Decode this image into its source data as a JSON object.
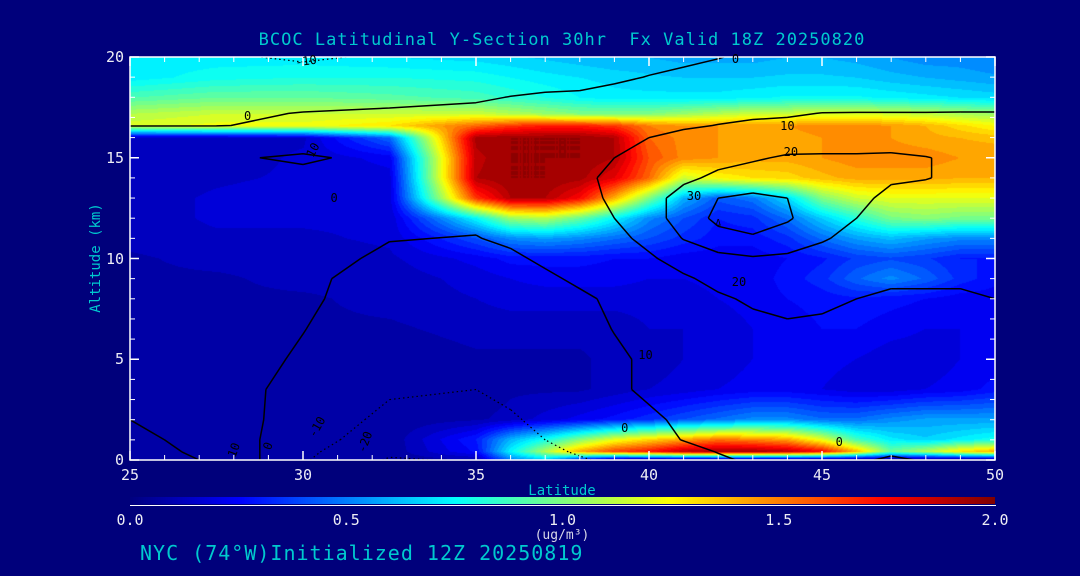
{
  "title": "BCOC Latitudinal Y-Section 30hr  Fx Valid 18Z 20250820",
  "footer": "NYC (74°W)Initialized 12Z 20250819",
  "colors": {
    "background": "#00007b",
    "label_cyan": "#00c9ce",
    "tick_white": "#ededf5",
    "axis_white": "#ffffff",
    "contour_black": "#000000"
  },
  "axes": {
    "x": {
      "label": "Latitude",
      "min": 25,
      "max": 50,
      "major_ticks": [
        25,
        30,
        35,
        40,
        45,
        50
      ],
      "minor_step": 1
    },
    "y": {
      "label": "Altitude (km)",
      "min": 0,
      "max": 20,
      "major_ticks": [
        0,
        5,
        10,
        15,
        20
      ],
      "minor_step": 1
    }
  },
  "colorbar": {
    "min": 0.0,
    "max": 2.0,
    "tick_labels": [
      "0.0",
      "0.5",
      "1.0",
      "1.5",
      "2.0"
    ],
    "units": "(ug/m³)",
    "palette": "jet"
  },
  "chart_data": {
    "type": "heatmap",
    "title": "BCOC Latitudinal Y-Section 30hr  Fx Valid 18Z 20250820",
    "xlabel": "Latitude",
    "ylabel": "Altitude (km)",
    "fill_field": "BCOC concentration (ug/m3), values estimated from jet colormap, range 0-2",
    "fill_levels_step": 0.05,
    "lats": [
      25,
      27.5,
      30,
      32.5,
      35,
      36,
      37,
      38,
      39,
      40,
      41,
      42,
      43,
      44,
      45,
      46,
      47,
      48,
      49,
      50
    ],
    "alts": [
      0,
      0.4,
      1,
      2,
      3.5,
      5,
      6.5,
      8,
      9,
      10,
      11,
      12,
      13,
      14,
      15,
      16,
      16.6,
      17.2,
      18,
      19,
      20
    ],
    "conc": [
      [
        0.06,
        0.06,
        0.06,
        0.06,
        0.1,
        0.5,
        0.66,
        0.3,
        0.06,
        0.03,
        0.03,
        0.03,
        0.03,
        0.03,
        0.03,
        0.03,
        0.03,
        0.03,
        0.03,
        0.03
      ],
      [
        0.06,
        0.06,
        0.06,
        0.06,
        0.26,
        0.74,
        1.1,
        1.42,
        1.62,
        1.72,
        1.88,
        1.93,
        1.93,
        1.88,
        1.75,
        1.4,
        0.95,
        1.1,
        1.3,
        1.42
      ],
      [
        0.06,
        0.06,
        0.06,
        0.06,
        0.3,
        0.6,
        0.78,
        1.0,
        1.2,
        1.32,
        1.42,
        1.52,
        1.48,
        1.42,
        1.2,
        0.88,
        0.72,
        0.66,
        0.72,
        0.78
      ],
      [
        0.06,
        0.06,
        0.06,
        0.06,
        0.09,
        0.12,
        0.17,
        0.22,
        0.27,
        0.33,
        0.4,
        0.46,
        0.52,
        0.52,
        0.46,
        0.46,
        0.52,
        0.56,
        0.56,
        0.56
      ],
      [
        0.06,
        0.06,
        0.06,
        0.06,
        0.06,
        0.09,
        0.09,
        0.09,
        0.12,
        0.15,
        0.17,
        0.2,
        0.22,
        0.22,
        0.2,
        0.17,
        0.17,
        0.2,
        0.22,
        0.27
      ],
      [
        0.06,
        0.06,
        0.09,
        0.06,
        0.09,
        0.09,
        0.09,
        0.09,
        0.12,
        0.12,
        0.15,
        0.17,
        0.2,
        0.22,
        0.22,
        0.2,
        0.17,
        0.17,
        0.2,
        0.22
      ],
      [
        0.06,
        0.09,
        0.09,
        0.09,
        0.12,
        0.12,
        0.12,
        0.12,
        0.12,
        0.15,
        0.15,
        0.17,
        0.2,
        0.22,
        0.25,
        0.25,
        0.22,
        0.2,
        0.2,
        0.22
      ],
      [
        0.06,
        0.09,
        0.09,
        0.12,
        0.15,
        0.17,
        0.17,
        0.17,
        0.17,
        0.17,
        0.17,
        0.2,
        0.22,
        0.25,
        0.27,
        0.29,
        0.27,
        0.25,
        0.22,
        0.22
      ],
      [
        0.09,
        0.09,
        0.12,
        0.12,
        0.17,
        0.2,
        0.22,
        0.22,
        0.22,
        0.2,
        0.2,
        0.22,
        0.22,
        0.27,
        0.33,
        0.44,
        0.52,
        0.44,
        0.33,
        0.27
      ],
      [
        0.09,
        0.12,
        0.12,
        0.14,
        0.22,
        0.27,
        0.27,
        0.27,
        0.25,
        0.25,
        0.22,
        0.22,
        0.22,
        0.25,
        0.29,
        0.36,
        0.39,
        0.36,
        0.3,
        0.3
      ],
      [
        0.12,
        0.14,
        0.14,
        0.16,
        0.4,
        0.52,
        0.56,
        0.52,
        0.46,
        0.4,
        0.33,
        0.27,
        0.27,
        0.33,
        0.46,
        0.56,
        0.62,
        0.56,
        0.52,
        0.52
      ],
      [
        0.12,
        0.16,
        0.16,
        0.16,
        0.75,
        1.05,
        1.1,
        0.95,
        0.75,
        0.52,
        0.4,
        0.3,
        0.33,
        0.46,
        0.65,
        0.82,
        0.98,
        1.02,
        0.98,
        0.98
      ],
      [
        0.12,
        0.16,
        0.18,
        0.18,
        1.65,
        1.9,
        1.9,
        1.75,
        1.4,
        1.0,
        0.6,
        0.42,
        0.48,
        0.68,
        1.0,
        1.15,
        1.2,
        1.2,
        1.2,
        1.2
      ],
      [
        0.12,
        0.14,
        0.16,
        0.18,
        1.9,
        1.95,
        1.95,
        1.92,
        1.8,
        1.55,
        1.15,
        1.25,
        1.3,
        1.32,
        1.38,
        1.42,
        1.42,
        1.42,
        1.4,
        1.4
      ],
      [
        0.12,
        0.12,
        0.16,
        0.22,
        1.88,
        1.95,
        1.95,
        1.95,
        1.9,
        1.6,
        1.48,
        1.45,
        1.42,
        1.42,
        1.45,
        1.48,
        1.48,
        1.48,
        1.45,
        1.45
      ],
      [
        0.12,
        0.12,
        0.14,
        0.45,
        1.92,
        1.95,
        1.95,
        1.95,
        1.9,
        1.55,
        1.48,
        1.45,
        1.42,
        1.42,
        1.45,
        1.45,
        1.45,
        1.42,
        1.4,
        1.38
      ],
      [
        1.18,
        1.22,
        1.22,
        1.3,
        1.55,
        1.65,
        1.7,
        1.7,
        1.65,
        1.5,
        1.45,
        1.45,
        1.45,
        1.45,
        1.48,
        1.48,
        1.45,
        1.4,
        1.32,
        1.25
      ],
      [
        1.1,
        1.15,
        1.15,
        1.15,
        1.15,
        1.1,
        1.05,
        1.0,
        1.0,
        1.0,
        1.05,
        1.1,
        1.15,
        1.15,
        1.18,
        1.18,
        1.15,
        1.12,
        1.08,
        1.05
      ],
      [
        0.9,
        0.95,
        0.95,
        0.92,
        0.88,
        0.84,
        0.8,
        0.75,
        0.72,
        0.72,
        0.72,
        0.72,
        0.74,
        0.76,
        0.76,
        0.76,
        0.74,
        0.72,
        0.7,
        0.68
      ],
      [
        0.72,
        0.78,
        0.8,
        0.8,
        0.78,
        0.75,
        0.72,
        0.7,
        0.68,
        0.66,
        0.65,
        0.65,
        0.65,
        0.66,
        0.66,
        0.65,
        0.62,
        0.6,
        0.58,
        0.56
      ],
      [
        0.72,
        0.72,
        0.72,
        0.7,
        0.68,
        0.66,
        0.64,
        0.62,
        0.6,
        0.6,
        0.58,
        0.58,
        0.58,
        0.6,
        0.6,
        0.58,
        0.55,
        0.52,
        0.52,
        0.5
      ]
    ],
    "overlay_contours": {
      "description": "black line-contour field, labels -20..30, negative levels dotted",
      "levels": [
        -20,
        -10,
        0,
        10,
        20,
        30
      ],
      "values": [
        [
          14,
          9,
          -9,
          -21,
          -19,
          -16,
          -13,
          -11,
          -8,
          -6,
          -3,
          -1,
          1,
          1,
          2,
          1,
          -1,
          0.5,
          1,
          2
        ],
        [
          13,
          8,
          -8,
          -18,
          -17,
          -14,
          -12,
          -9,
          -7,
          -4,
          -2,
          0.2,
          1,
          2,
          2,
          1,
          1,
          1,
          2,
          3
        ],
        [
          12,
          7,
          -7,
          -14,
          -15,
          -13,
          -10,
          -8,
          -5,
          -2,
          0.2,
          2,
          3,
          3,
          3,
          2,
          1,
          2,
          3,
          4
        ],
        [
          10,
          6,
          -5,
          -12,
          -13,
          -11,
          -8,
          -5,
          -3,
          -1,
          1,
          3,
          4,
          4,
          4,
          3,
          3,
          3,
          4,
          5
        ],
        [
          8,
          4,
          -3,
          -9,
          -10,
          -8,
          -6,
          -4,
          -1,
          1,
          2,
          3,
          5,
          5,
          5,
          5,
          4,
          4,
          5,
          6
        ],
        [
          7,
          4,
          -1,
          -7,
          -8,
          -7,
          -5,
          -3,
          -1,
          1,
          3,
          4,
          6,
          7,
          7,
          6,
          5,
          6,
          6,
          7
        ],
        [
          6,
          3,
          0.2,
          -5,
          -6,
          -5,
          -4,
          -2,
          0.2,
          2,
          4,
          6,
          8,
          9,
          9,
          8,
          7,
          7,
          8,
          8
        ],
        [
          5,
          3,
          1,
          -3,
          -4,
          -3,
          -2,
          -1,
          1,
          3,
          6,
          9,
          11,
          12,
          11,
          10,
          9,
          9,
          9,
          10
        ],
        [
          5,
          3,
          1,
          -2,
          -3,
          -2,
          -1,
          1,
          3,
          6,
          9,
          12,
          14,
          14,
          13,
          12,
          11,
          11,
          11,
          11
        ],
        [
          4,
          3,
          2,
          -1,
          -1,
          -1,
          1,
          3,
          6,
          9,
          13,
          17,
          19,
          18,
          16,
          14,
          13,
          12,
          12,
          12
        ],
        [
          4,
          3,
          2,
          0.2,
          -0.2,
          1,
          2,
          5,
          8,
          12,
          20.5,
          27,
          29,
          26,
          21,
          17,
          15,
          14,
          14,
          14
        ],
        [
          4,
          3,
          2,
          0.2,
          1,
          2,
          4,
          7,
          10,
          15,
          25,
          32,
          34,
          31,
          25,
          20,
          17,
          16,
          15,
          15
        ],
        [
          3,
          4,
          5,
          3,
          2,
          4,
          6,
          8,
          11,
          16,
          24,
          30,
          32,
          30,
          25,
          21,
          19,
          18,
          17,
          17
        ],
        [
          5,
          7,
          8,
          6,
          3,
          5,
          7,
          9,
          11,
          14,
          18,
          22,
          24,
          23,
          22,
          21,
          20.5,
          20.2,
          19,
          19
        ],
        [
          7,
          9,
          11,
          8,
          3,
          5,
          7,
          8,
          10,
          12,
          15,
          17,
          19,
          21,
          21,
          21,
          21,
          20.2,
          19,
          19
        ],
        [
          5,
          6,
          6,
          6,
          3,
          5,
          6,
          7,
          8,
          10,
          12,
          13,
          14,
          15,
          16,
          16,
          17,
          17,
          17,
          17
        ],
        [
          -0.2,
          -0.2,
          1,
          2,
          3,
          4,
          5,
          6,
          7,
          8,
          9,
          10.2,
          11,
          12,
          12,
          13,
          13,
          13,
          13,
          13
        ],
        [
          -1,
          -1,
          0.2,
          1,
          2,
          3,
          4,
          4,
          5,
          6,
          7,
          8,
          9,
          9,
          10.2,
          10.2,
          10.2,
          10.2,
          10.2,
          10.2
        ],
        [
          -3,
          -3,
          -2,
          -2,
          -1,
          0.2,
          1,
          1,
          2,
          3,
          4,
          5,
          5,
          6,
          6,
          7,
          7,
          7,
          8,
          8
        ],
        [
          -6,
          -7,
          -7,
          -6,
          -5,
          -4,
          -3,
          -2,
          -1,
          0.2,
          1,
          2,
          3,
          3,
          4,
          4,
          5,
          5,
          6,
          6
        ],
        [
          -8,
          -9,
          -11,
          -9,
          -7,
          -6,
          -5,
          -4,
          -3,
          -2,
          -1,
          -0.2,
          1,
          1,
          2,
          2,
          3,
          3,
          4,
          4
        ]
      ],
      "labels": [
        {
          "text": "-10",
          "lat": 30.1,
          "alt": 19.8,
          "rot": -8,
          "small": false
        },
        {
          "text": "0",
          "lat": 28.4,
          "alt": 17.05,
          "rot": 0,
          "small": false
        },
        {
          "text": "0",
          "lat": 42.5,
          "alt": 19.9,
          "rot": 0,
          "small": false
        },
        {
          "text": "10",
          "lat": 30.3,
          "alt": 15.4,
          "rot": -62,
          "small": false
        },
        {
          "text": "0",
          "lat": 30.9,
          "alt": 13.0,
          "rot": 0,
          "small": false
        },
        {
          "text": "10",
          "lat": 44.0,
          "alt": 16.6,
          "rot": 0,
          "small": false
        },
        {
          "text": "20",
          "lat": 44.1,
          "alt": 15.3,
          "rot": 0,
          "small": false
        },
        {
          "text": "30",
          "lat": 41.3,
          "alt": 13.1,
          "rot": 0,
          "small": false
        },
        {
          "text": "Δ",
          "lat": 42.0,
          "alt": 11.7,
          "rot": 0,
          "small": true
        },
        {
          "text": "20",
          "lat": 42.6,
          "alt": 8.85,
          "rot": 0,
          "small": false
        },
        {
          "text": "10",
          "lat": 39.9,
          "alt": 5.2,
          "rot": 0,
          "small": false
        },
        {
          "text": "0",
          "lat": 39.3,
          "alt": 1.6,
          "rot": 0,
          "small": false
        },
        {
          "text": "0",
          "lat": 45.5,
          "alt": 0.9,
          "rot": 0,
          "small": false
        },
        {
          "text": "10",
          "lat": 28.0,
          "alt": 0.5,
          "rot": -70,
          "small": false
        },
        {
          "text": "0",
          "lat": 29.0,
          "alt": 0.7,
          "rot": -70,
          "small": false
        },
        {
          "text": "-10",
          "lat": 30.4,
          "alt": 1.65,
          "rot": -60,
          "small": false
        },
        {
          "text": "-20",
          "lat": 31.8,
          "alt": 0.9,
          "rot": -70,
          "small": false
        }
      ]
    }
  }
}
